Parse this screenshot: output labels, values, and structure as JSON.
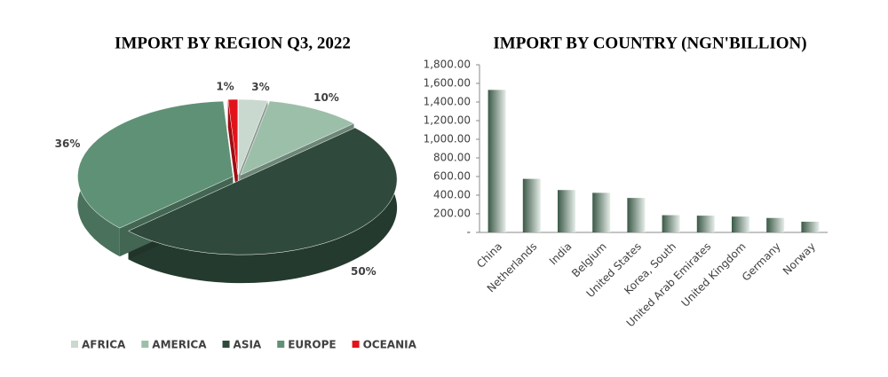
{
  "chart_data": [
    {
      "type": "pie",
      "title": "IMPORT BY REGION Q3, 2022",
      "categories": [
        "AFRICA",
        "AMERICA",
        "ASIA",
        "EUROPE",
        "OCEANIA"
      ],
      "values": [
        3,
        10,
        50,
        36,
        1
      ],
      "value_labels": [
        "3%",
        "10%",
        "50%",
        "36%",
        "1%"
      ],
      "colors": [
        "#c9d9cf",
        "#9cbfaa",
        "#2f4a3c",
        "#5f9176",
        "#e3131b"
      ],
      "legend": "bottom"
    },
    {
      "type": "bar",
      "title": "IMPORT BY COUNTRY (NGN'BILLION)",
      "categories": [
        "China",
        "Netherlands",
        "India",
        "Belgium",
        "United States",
        "Korea, South",
        "United Arab Emirates",
        "United Kingdom",
        "Germany",
        "Norway"
      ],
      "values": [
        1530,
        575,
        455,
        425,
        370,
        185,
        180,
        170,
        155,
        115
      ],
      "color": "#3b5847",
      "ylim": [
        0,
        1800
      ],
      "yticks": [
        {
          "value": 0,
          "label": "-"
        },
        {
          "value": 200,
          "label": "200.00"
        },
        {
          "value": 400,
          "label": "400.00"
        },
        {
          "value": 600,
          "label": "600.00"
        },
        {
          "value": 800,
          "label": "800.00"
        },
        {
          "value": 1000,
          "label": "1,000.00"
        },
        {
          "value": 1200,
          "label": "1,200.00"
        },
        {
          "value": 1400,
          "label": "1,400.00"
        },
        {
          "value": 1600,
          "label": "1,600.00"
        },
        {
          "value": 1800,
          "label": "1,800.00"
        }
      ],
      "grid": false
    }
  ]
}
